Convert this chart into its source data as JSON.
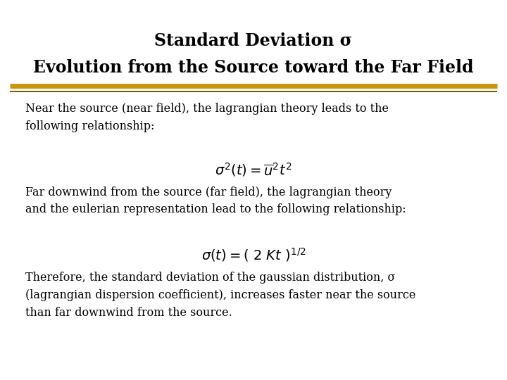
{
  "title_line1": "Standard Deviation σ",
  "title_line2": "Evolution from the Source toward the Far Field",
  "title_fontsize": 17,
  "body_fontsize": 11.5,
  "formula_fontsize": 14,
  "bg_color": "#ffffff",
  "title_color": "#000000",
  "body_color": "#000000",
  "bar_color_gold": "#C8960C",
  "bar_color_dark": "#7A6200",
  "para1_text": "Near the source (near field), the lagrangian theory leads to the\nfollowing relationship:",
  "formula1": "$\\sigma^2(t)=\\overline{u}^2 t^2$",
  "para2_text": "Far downwind from the source (far field), the lagrangian theory\nand the eulerian representation lead to the following relationship:",
  "formula2": "$\\sigma(t) = ( \\ 2 \\ Kt \\ )^{1/2}$",
  "para3_text": "Therefore, the standard deviation of the gaussian distribution, σ\n(lagrangian dispersion coefficient), increases faster near the source\nthan far downwind from the source."
}
